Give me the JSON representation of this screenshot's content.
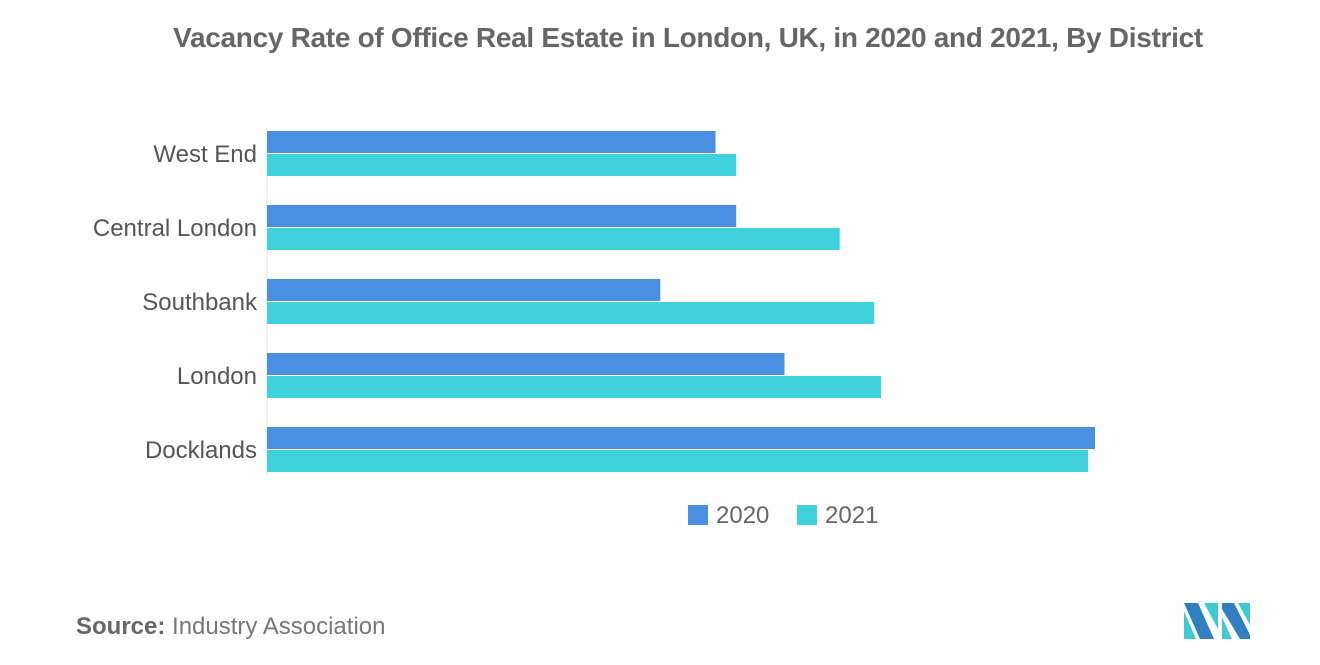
{
  "chart_data": {
    "type": "bar",
    "orientation": "horizontal",
    "title": "Vacancy Rate of Office Real Estate in London, UK, in 2020 and 2021, By District",
    "categories": [
      "West End",
      "Central London",
      "Southbank",
      "London",
      "Docklands"
    ],
    "series": [
      {
        "name": "2020",
        "color": "#4a90e2",
        "values": [
          6.5,
          6.8,
          5.7,
          7.5,
          12.0
        ]
      },
      {
        "name": "2021",
        "color": "#3fd1dc",
        "values": [
          6.8,
          8.3,
          8.8,
          8.9,
          11.9
        ]
      }
    ],
    "xlim": [
      0,
      12
    ],
    "grid": false,
    "value_axis_shown": false,
    "legend_position": "bottom"
  },
  "source": {
    "label": "Source:",
    "text": "Industry Association"
  }
}
